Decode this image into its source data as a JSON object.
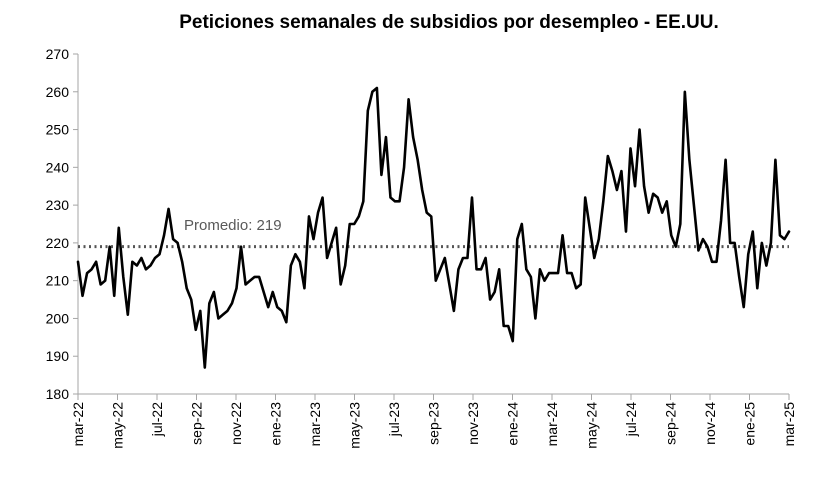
{
  "chart_data": {
    "type": "line",
    "title": "Peticiones semanales de subsidios por desempleo - EE.UU.",
    "xlabel": "",
    "ylabel": "",
    "ylim": [
      180,
      270
    ],
    "y_ticks": [
      180,
      190,
      200,
      210,
      220,
      230,
      240,
      250,
      260,
      270
    ],
    "x_ticks": [
      "mar-22",
      "may-22",
      "jul-22",
      "sep-22",
      "nov-22",
      "ene-23",
      "mar-23",
      "may-23",
      "jul-23",
      "sep-23",
      "nov-23",
      "ene-24",
      "mar-24",
      "may-24",
      "jul-24",
      "sep-24",
      "nov-24",
      "ene-25",
      "mar-25"
    ],
    "grid": false,
    "series": [
      {
        "name": "",
        "color": "#000000",
        "values": [
          215,
          206,
          212,
          213,
          215,
          209,
          210,
          219,
          206,
          224,
          211,
          201,
          215,
          214,
          216,
          213,
          214,
          216,
          217,
          222,
          229,
          221,
          220,
          215,
          208,
          205,
          197,
          202,
          187,
          204,
          207,
          200,
          201,
          202,
          204,
          208,
          219,
          209,
          210,
          211,
          211,
          207,
          203,
          207,
          203,
          202,
          199,
          214,
          217,
          215,
          208,
          227,
          221,
          228,
          232,
          216,
          220,
          224,
          209,
          214,
          225,
          225,
          227,
          231,
          255,
          260,
          261,
          238,
          248,
          232,
          231,
          231,
          240,
          258,
          248,
          242,
          234,
          228,
          227,
          210,
          213,
          216,
          209,
          202,
          213,
          216,
          216,
          232,
          213,
          213,
          216,
          205,
          207,
          213,
          198,
          198,
          194,
          221,
          225,
          213,
          211,
          200,
          213,
          210,
          212,
          212,
          212,
          222,
          212,
          212,
          208,
          209,
          232,
          224,
          216,
          221,
          231,
          243,
          239,
          234,
          239,
          223,
          245,
          235,
          250,
          235,
          228,
          233,
          232,
          228,
          231,
          222,
          219,
          225,
          260,
          242,
          230,
          218,
          221,
          219,
          215,
          215,
          226,
          242,
          220,
          220,
          211,
          203,
          217,
          223,
          208,
          220,
          214,
          220,
          242,
          222,
          221,
          223
        ]
      }
    ],
    "reference_line": {
      "value": 219,
      "label": "Promedio: 219",
      "color": "#555555",
      "style": "dotted"
    }
  }
}
